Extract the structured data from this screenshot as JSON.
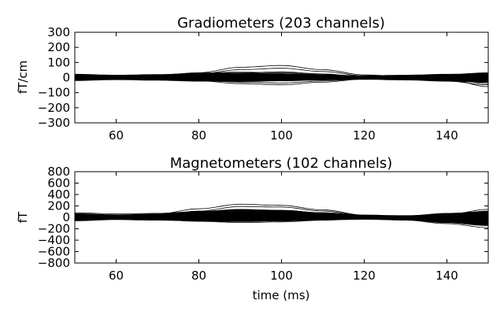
{
  "chart_data": [
    {
      "type": "line",
      "title": "Gradiometers (203 channels)",
      "xlabel": "",
      "ylabel": "fT/cm",
      "xlim": [
        50,
        150
      ],
      "ylim": [
        -300,
        300
      ],
      "xticks": [
        60,
        80,
        100,
        120,
        140
      ],
      "yticks": [
        -300,
        -200,
        -100,
        0,
        100,
        200,
        300
      ],
      "ytick_labels": [
        "−300",
        "−200",
        "−100",
        "0",
        "100",
        "200",
        "300"
      ],
      "xtick_labels": [
        "60",
        "80",
        "100",
        "120",
        "140"
      ],
      "line_color": "#000000",
      "channel_count": 203,
      "x": [
        50,
        60,
        70,
        80,
        90,
        100,
        110,
        120,
        130,
        140,
        150
      ],
      "series": [
        {
          "values": [
            12,
            8,
            14,
            32,
            68,
            80,
            52,
            18,
            6,
            2,
            -6
          ]
        },
        {
          "values": [
            6,
            4,
            10,
            25,
            52,
            62,
            40,
            12,
            4,
            2,
            -4
          ]
        },
        {
          "values": [
            -4,
            -2,
            2,
            12,
            30,
            38,
            24,
            6,
            0,
            -2,
            -12
          ]
        },
        {
          "values": [
            -10,
            -8,
            -12,
            -22,
            -40,
            -48,
            -30,
            -10,
            -5,
            -12,
            -60
          ]
        },
        {
          "values": [
            -6,
            -4,
            -8,
            -18,
            -30,
            -36,
            -22,
            -8,
            -4,
            -8,
            -40
          ]
        },
        {
          "values": [
            20,
            14,
            18,
            30,
            36,
            32,
            20,
            8,
            12,
            20,
            28
          ]
        },
        {
          "values": [
            -18,
            -12,
            -10,
            -14,
            -18,
            -16,
            -10,
            -6,
            -12,
            -24,
            -48
          ]
        },
        {
          "values": [
            8,
            6,
            8,
            14,
            18,
            16,
            10,
            4,
            10,
            18,
            32
          ]
        },
        {
          "values": [
            -2,
            0,
            4,
            8,
            14,
            16,
            10,
            2,
            -6,
            -14,
            -28
          ]
        },
        {
          "values": [
            14,
            10,
            6,
            4,
            2,
            0,
            -2,
            -4,
            6,
            14,
            22
          ]
        }
      ],
      "band": {
        "upper": [
          24,
          18,
          22,
          30,
          32,
          28,
          20,
          14,
          18,
          24,
          30
        ],
        "lower": [
          -22,
          -16,
          -20,
          -26,
          -28,
          -24,
          -18,
          -14,
          -18,
          -26,
          -34
        ]
      }
    },
    {
      "type": "line",
      "title": "Magnetometers (102 channels)",
      "xlabel": "time (ms)",
      "ylabel": "fT",
      "xlim": [
        50,
        150
      ],
      "ylim": [
        -800,
        800
      ],
      "xticks": [
        60,
        80,
        100,
        120,
        140
      ],
      "yticks": [
        -800,
        -600,
        -400,
        -200,
        0,
        200,
        400,
        600,
        800
      ],
      "ytick_labels": [
        "−800",
        "−600",
        "−400",
        "−200",
        "0",
        "200",
        "400",
        "600",
        "800"
      ],
      "xtick_labels": [
        "60",
        "80",
        "100",
        "120",
        "140"
      ],
      "line_color": "#000000",
      "channel_count": 102,
      "x": [
        50,
        60,
        70,
        80,
        90,
        100,
        110,
        120,
        130,
        140,
        150
      ],
      "series": [
        {
          "values": [
            40,
            20,
            60,
            150,
            230,
            210,
            130,
            40,
            -10,
            40,
            110
          ]
        },
        {
          "values": [
            30,
            10,
            40,
            110,
            190,
            180,
            110,
            30,
            -5,
            30,
            90
          ]
        },
        {
          "values": [
            60,
            40,
            50,
            90,
            130,
            120,
            80,
            30,
            10,
            50,
            140
          ]
        },
        {
          "values": [
            -20,
            -10,
            10,
            60,
            110,
            100,
            60,
            10,
            -20,
            -40,
            -60
          ]
        },
        {
          "values": [
            -40,
            -30,
            -40,
            -70,
            -90,
            -80,
            -50,
            -20,
            -30,
            -80,
            -140
          ]
        },
        {
          "values": [
            -60,
            -40,
            -50,
            -60,
            -70,
            -60,
            -40,
            -30,
            -50,
            -110,
            -180
          ]
        },
        {
          "values": [
            20,
            10,
            20,
            40,
            60,
            50,
            30,
            10,
            20,
            70,
            100
          ]
        },
        {
          "values": [
            -10,
            0,
            10,
            30,
            50,
            40,
            20,
            0,
            -10,
            -30,
            -50
          ]
        },
        {
          "values": [
            80,
            60,
            70,
            100,
            140,
            120,
            80,
            40,
            30,
            60,
            80
          ]
        }
      ],
      "band": {
        "upper": [
          70,
          50,
          60,
          110,
          140,
          130,
          80,
          40,
          30,
          70,
          110
        ],
        "lower": [
          -60,
          -40,
          -50,
          -70,
          -80,
          -70,
          -50,
          -40,
          -50,
          -100,
          -150
        ]
      }
    }
  ]
}
